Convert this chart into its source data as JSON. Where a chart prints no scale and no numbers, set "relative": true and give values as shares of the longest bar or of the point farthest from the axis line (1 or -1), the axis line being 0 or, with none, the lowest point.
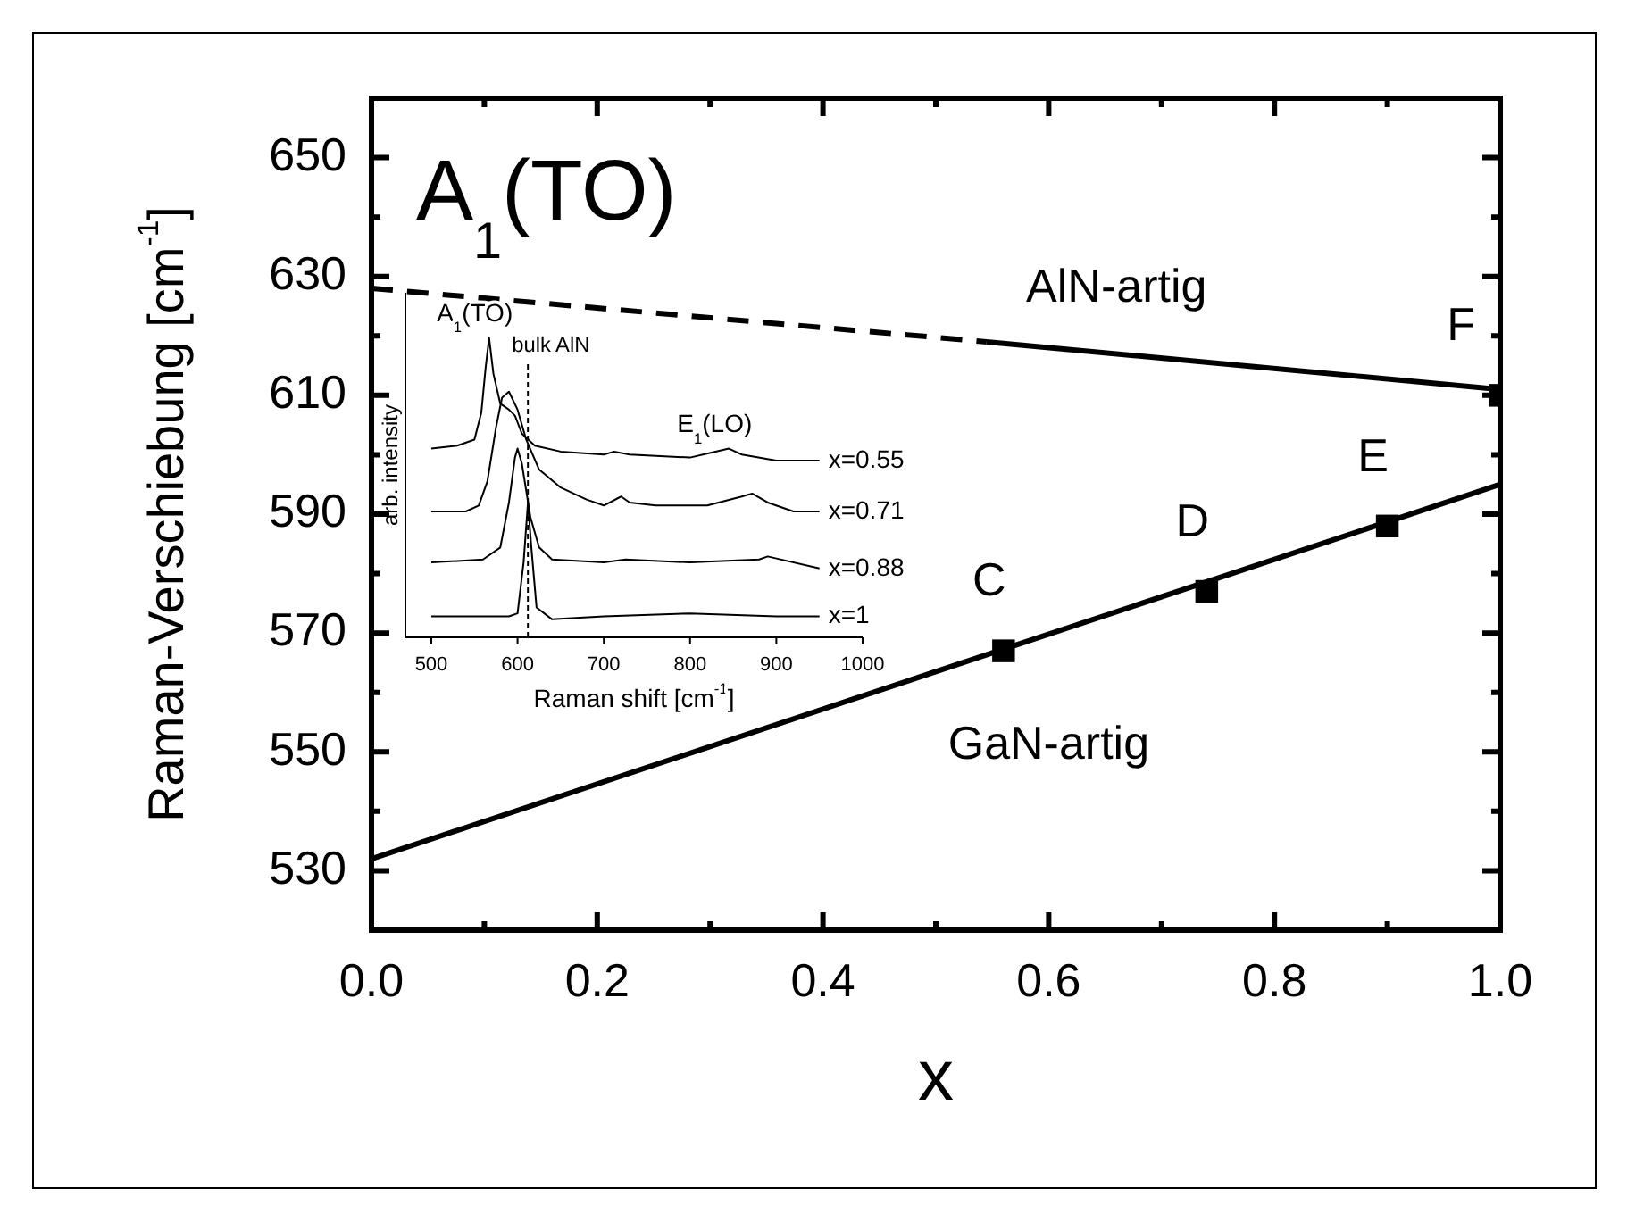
{
  "chart_data": [
    {
      "type": "line",
      "title": "A$_{1}$(TO)",
      "xlabel": "x",
      "ylabel": "Raman-Verschiebung [cm$^{-1}$]",
      "xlim": [
        0,
        1
      ],
      "ylim": [
        520,
        660
      ],
      "xticks": [
        {
          "value": 0,
          "label": "0.0"
        },
        {
          "value": 0.1,
          "label": null
        },
        0.2,
        {
          "value": 0.3,
          "label": null
        },
        0.4,
        {
          "value": 0.5,
          "label": null
        },
        0.6,
        {
          "value": 0.7,
          "label": null
        },
        0.8,
        {
          "value": 0.9,
          "label": null
        },
        {
          "value": 1,
          "label": "1.0"
        }
      ],
      "yticks": [
        530,
        {
          "value": 540,
          "label": null
        },
        550,
        {
          "value": 560,
          "label": null
        },
        570,
        {
          "value": 580,
          "label": null
        },
        590,
        {
          "value": 600,
          "label": null
        },
        610,
        {
          "value": 620,
          "label": null
        },
        630,
        {
          "value": 640,
          "label": null
        },
        650
      ],
      "grid": false,
      "legend": false,
      "series": [
        {
          "type": "line",
          "color": "#000000",
          "x": [
            0,
            1
          ],
          "values": [
            532,
            595
          ],
          "marker": "none",
          "line_style": "solid"
        },
        {
          "type": "line",
          "color": "#000000",
          "x": [
            0,
            0.545
          ],
          "values": [
            628,
            619
          ],
          "marker": "none",
          "line_style": "dashed"
        },
        {
          "type": "line",
          "color": "#000000",
          "x": [
            0.545,
            1
          ],
          "values": [
            619,
            611
          ],
          "marker": "none",
          "line_style": "solid"
        },
        {
          "type": "scatter",
          "color": "#000000",
          "x": [
            0.56,
            0.74,
            0.9,
            1.0
          ],
          "values": [
            567,
            577,
            588,
            610
          ],
          "marker": "square"
        }
      ],
      "annotations": [
        "AlN-artig",
        "GaN-artig",
        {
          "text": "C",
          "x": 0.56,
          "y": 567
        },
        {
          "text": "D",
          "x": 0.74,
          "y": 577
        },
        {
          "text": "E",
          "x": 0.9,
          "y": 588
        },
        {
          "text": "F",
          "x": 1.0,
          "y": 610
        }
      ]
    },
    {
      "type": "line",
      "xlabel": "Raman shift [cm$^{-1}$]",
      "ylabel": "arb. intensity",
      "relative": true,
      "xlim": [
        470,
        1000
      ],
      "xticks": [
        500,
        600,
        700,
        800,
        900,
        1000
      ],
      "grid": false,
      "legend": false,
      "ref_lines": [
        {
          "axis": "x",
          "value": 612,
          "label": "bulk AlN",
          "line_style": "dashed"
        }
      ],
      "series": [
        {
          "name": "x=0.55",
          "color": "#000000",
          "x": [
            500,
            530,
            550,
            558,
            563,
            567,
            572,
            580,
            590,
            597,
            605,
            620,
            650,
            700,
            712,
            730,
            800,
            845,
            860,
            900,
            950
          ],
          "values": [
            0.63,
            0.64,
            0.66,
            0.75,
            0.9,
            1.0,
            0.88,
            0.78,
            0.76,
            0.74,
            0.68,
            0.64,
            0.62,
            0.61,
            0.62,
            0.61,
            0.6,
            0.63,
            0.61,
            0.59,
            0.59
          ]
        },
        {
          "name": "x=0.71",
          "color": "#000000",
          "x": [
            500,
            540,
            555,
            565,
            575,
            582,
            590,
            600,
            610,
            625,
            650,
            680,
            700,
            720,
            730,
            760,
            820,
            860,
            872,
            890,
            920,
            950
          ],
          "values": [
            0.42,
            0.42,
            0.44,
            0.52,
            0.7,
            0.8,
            0.82,
            0.76,
            0.66,
            0.56,
            0.5,
            0.46,
            0.44,
            0.47,
            0.45,
            0.44,
            0.44,
            0.47,
            0.48,
            0.45,
            0.42,
            0.42
          ]
        },
        {
          "name": "x=0.88",
          "color": "#000000",
          "x": [
            500,
            560,
            580,
            590,
            597,
            600,
            605,
            615,
            625,
            640,
            700,
            725,
            800,
            880,
            890,
            950
          ],
          "values": [
            0.25,
            0.26,
            0.3,
            0.45,
            0.6,
            0.63,
            0.58,
            0.4,
            0.3,
            0.26,
            0.25,
            0.26,
            0.25,
            0.26,
            0.27,
            0.23
          ]
        },
        {
          "name": "x=1",
          "color": "#000000",
          "x": [
            500,
            590,
            600,
            607,
            612,
            616,
            622,
            640,
            700,
            800,
            900,
            950
          ],
          "values": [
            0.07,
            0.07,
            0.08,
            0.25,
            0.45,
            0.3,
            0.1,
            0.06,
            0.07,
            0.08,
            0.07,
            0.07
          ]
        }
      ],
      "annotations": [
        {
          "text": "A$_{1}$(TO)",
          "x": 567,
          "y": 1.0
        },
        {
          "text": "E$_{1}$(LO)",
          "x": 845,
          "y": 0.63
        }
      ]
    }
  ]
}
